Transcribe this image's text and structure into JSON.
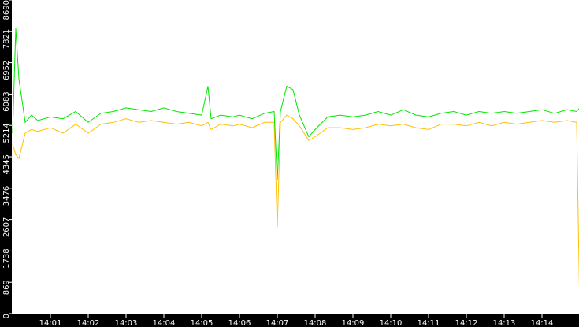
{
  "chart_data": {
    "type": "line",
    "title": "",
    "xlabel": "",
    "ylabel": "",
    "ylim": [
      0,
      8690
    ],
    "xlim": [
      "14:00:00",
      "14:15:00"
    ],
    "grid": false,
    "legend": "none",
    "background": "#000000",
    "plot_background": "#ffffff",
    "y_ticks": [
      "0",
      "869",
      "1738",
      "2607",
      "3476",
      "4345",
      "5214",
      "6083",
      "6952",
      "7821",
      "8690"
    ],
    "x_ticks": [
      "14:01",
      "14:02",
      "14:03",
      "14:04",
      "14:05",
      "14:06",
      "14:07",
      "14:08",
      "14:09",
      "14:10",
      "14:11",
      "14:12",
      "14:13",
      "14:14"
    ],
    "x": [
      "14:00:00",
      "14:00:05",
      "14:00:10",
      "14:00:20",
      "14:00:30",
      "14:00:40",
      "14:01:00",
      "14:01:20",
      "14:01:40",
      "14:02:00",
      "14:02:20",
      "14:02:40",
      "14:03:00",
      "14:03:20",
      "14:03:40",
      "14:04:00",
      "14:04:20",
      "14:04:40",
      "14:05:00",
      "14:05:10",
      "14:05:15",
      "14:05:30",
      "14:05:50",
      "14:06:00",
      "14:06:20",
      "14:06:40",
      "14:06:55",
      "14:07:00",
      "14:07:05",
      "14:07:15",
      "14:07:25",
      "14:07:35",
      "14:07:50",
      "14:08:00",
      "14:08:20",
      "14:08:40",
      "14:09:00",
      "14:09:20",
      "14:09:40",
      "14:10:00",
      "14:10:20",
      "14:10:40",
      "14:11:00",
      "14:11:20",
      "14:11:40",
      "14:12:00",
      "14:12:20",
      "14:12:40",
      "14:13:00",
      "14:13:20",
      "14:13:40",
      "14:14:00",
      "14:14:20",
      "14:14:40",
      "14:14:55",
      "14:15:00"
    ],
    "series": [
      {
        "color": "#00e600",
        "values": [
          5000,
          7900,
          6500,
          5300,
          5500,
          5350,
          5450,
          5400,
          5600,
          5300,
          5550,
          5600,
          5700,
          5650,
          5600,
          5700,
          5600,
          5550,
          5500,
          6300,
          5400,
          5500,
          5450,
          5500,
          5400,
          5550,
          5600,
          3700,
          5600,
          6300,
          6200,
          5500,
          4900,
          5100,
          5450,
          5500,
          5450,
          5500,
          5600,
          5500,
          5650,
          5500,
          5450,
          5550,
          5600,
          5500,
          5600,
          5550,
          5600,
          5550,
          5600,
          5650,
          5550,
          5650,
          5600,
          5700
        ]
      },
      {
        "color": "#ffbf00",
        "values": [
          4700,
          4400,
          4300,
          5000,
          5100,
          5050,
          5150,
          5000,
          5250,
          5000,
          5250,
          5300,
          5400,
          5300,
          5350,
          5300,
          5250,
          5300,
          5200,
          5300,
          5100,
          5250,
          5200,
          5250,
          5150,
          5300,
          5300,
          2400,
          5300,
          5500,
          5400,
          5200,
          4800,
          4900,
          5150,
          5150,
          5100,
          5150,
          5250,
          5200,
          5250,
          5150,
          5100,
          5250,
          5250,
          5200,
          5300,
          5200,
          5300,
          5250,
          5300,
          5350,
          5300,
          5350,
          5300,
          0
        ]
      }
    ]
  }
}
